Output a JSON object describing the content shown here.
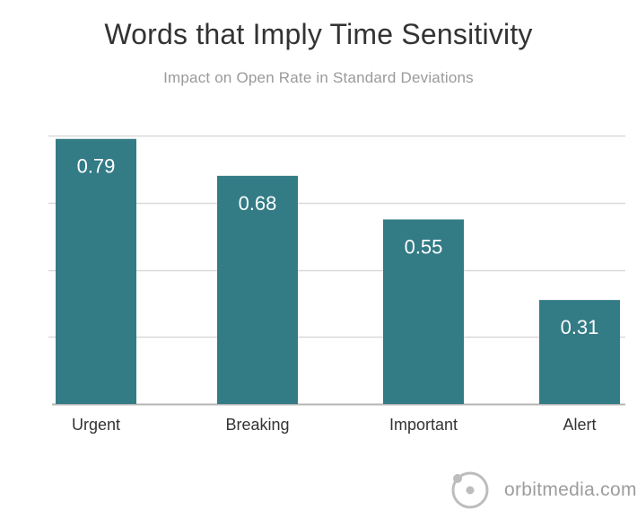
{
  "chart_data": {
    "type": "bar",
    "title": "Words that Imply Time Sensitivity",
    "subtitle": "Impact on Open Rate in Standard Deviations",
    "categories": [
      "Urgent",
      "Breaking",
      "Important",
      "Alert"
    ],
    "values": [
      0.79,
      0.68,
      0.55,
      0.31
    ],
    "data_labels": [
      "0.79",
      "0.68",
      "0.55",
      "0.31"
    ],
    "ylim": [
      0,
      0.8
    ],
    "grid": true,
    "legend": "none",
    "bar_color": "#337b85",
    "grid_color": "#d9d9d9",
    "axis_color": "#b5b5b5",
    "label_color": "#ffffff",
    "category_color": "#333333"
  },
  "brand": {
    "text": "orbitmedia.com",
    "color": "#9d9d9d",
    "logo_icon": "orbit-logo-icon"
  }
}
